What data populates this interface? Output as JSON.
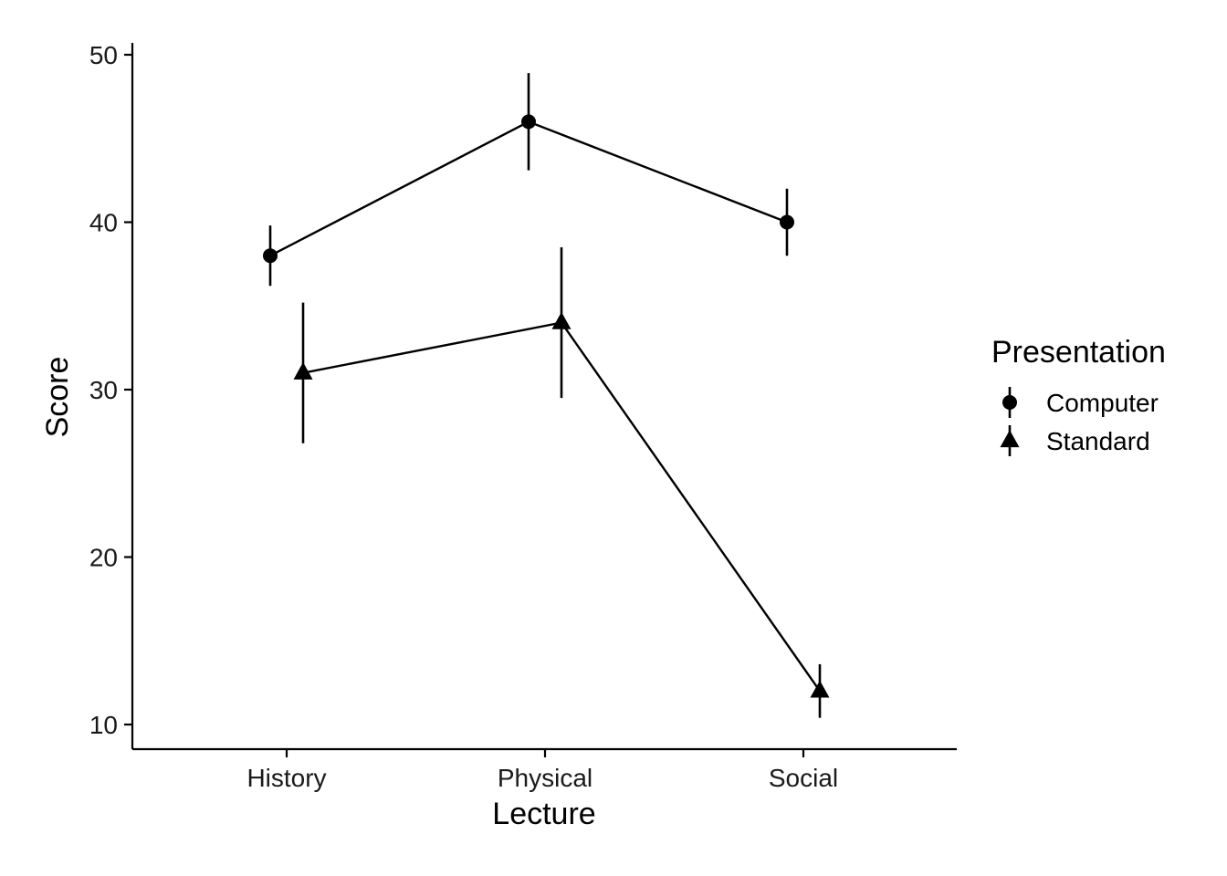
{
  "chart_data": {
    "type": "line",
    "title": "",
    "xlabel": "Lecture",
    "ylabel": "Score",
    "categories": [
      "History",
      "Physical",
      "Social"
    ],
    "yticks": [
      10,
      20,
      30,
      40,
      50
    ],
    "ylim": [
      8.5,
      50.8
    ],
    "legend": {
      "title": "Presentation",
      "position": "right"
    },
    "grid": false,
    "series": [
      {
        "name": "Computer",
        "marker": "circle",
        "color": "#000000",
        "values": [
          38,
          46,
          40
        ],
        "error_low": [
          36.2,
          43.1,
          38.0
        ],
        "error_high": [
          39.8,
          48.9,
          42.0
        ]
      },
      {
        "name": "Standard",
        "marker": "triangle",
        "color": "#000000",
        "values": [
          31,
          34,
          12
        ],
        "error_low": [
          26.8,
          29.5,
          10.4
        ],
        "error_high": [
          35.2,
          38.5,
          13.6
        ]
      }
    ]
  }
}
